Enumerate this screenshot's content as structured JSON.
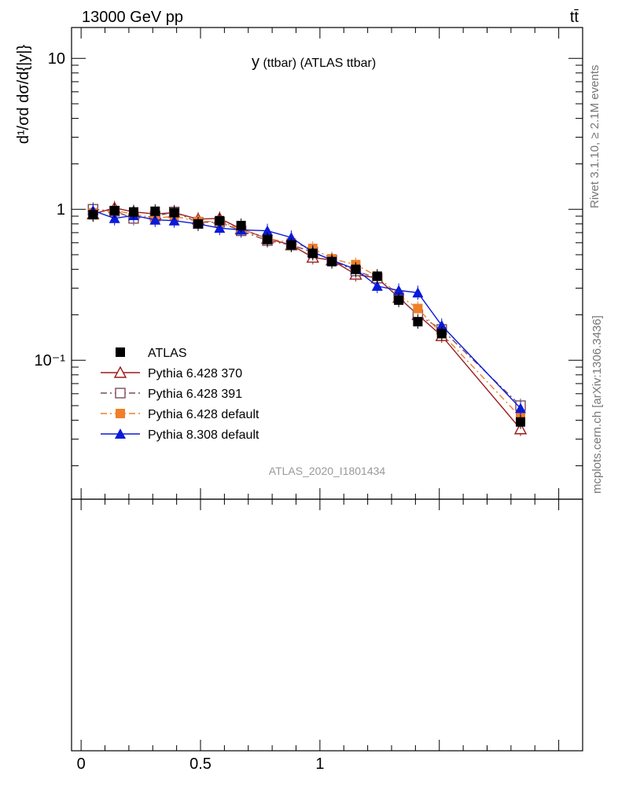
{
  "header": {
    "energy_label": "13000 GeV pp",
    "process_label": "tt̄",
    "rivet_label": "Rivet 3.1.10, ≥ 2.1M events",
    "mcplots_label": "mcplots.cern.ch [arXiv:1306.3436]",
    "analysis_id": "ATLAS_2020_I1801434"
  },
  "chart_data": {
    "type": "line",
    "title": "y(ttbar) (ATLAS ttbar)",
    "title_main": "y",
    "title_sub": "(ttbar) (ATLAS ttbar)",
    "ylabel": "",
    "xlabel": "",
    "y_scale": "log",
    "xlim": [
      -0.04,
      2.1
    ],
    "ylim": [
      0.012,
      16
    ],
    "y_ticks": [
      {
        "value": 10,
        "label": "10"
      },
      {
        "value": 1,
        "label": "1"
      },
      {
        "value": 0.1,
        "label": "10⁻¹"
      }
    ],
    "x_ticks": [
      {
        "value": 0,
        "label": "0"
      },
      {
        "value": 0.5,
        "label": "0.5"
      },
      {
        "value": 1,
        "label": "1"
      }
    ],
    "legend_position": "bottom-left",
    "grid": false,
    "series": [
      {
        "name": "ATLAS",
        "color": "#000000",
        "marker": "filled-square",
        "line": "none",
        "x": [
          0.05,
          0.14,
          0.22,
          0.31,
          0.39,
          0.49,
          0.58,
          0.67,
          0.78,
          0.88,
          0.97,
          1.05,
          1.15,
          1.24,
          1.33,
          1.41,
          1.51,
          1.84
        ],
        "y": [
          0.92,
          0.98,
          0.96,
          0.97,
          0.95,
          0.8,
          0.84,
          0.78,
          0.63,
          0.58,
          0.51,
          0.45,
          0.4,
          0.36,
          0.25,
          0.18,
          0.15,
          0.039
        ]
      },
      {
        "name": "Pythia 6.428 370",
        "color": "#9b1b1b",
        "marker": "open-triangle",
        "line": "solid",
        "x": [
          0.05,
          0.14,
          0.22,
          0.31,
          0.39,
          0.49,
          0.58,
          0.67,
          0.78,
          0.88,
          0.97,
          1.05,
          1.15,
          1.24,
          1.33,
          1.41,
          1.51,
          1.84
        ],
        "y": [
          0.93,
          1.02,
          0.96,
          0.93,
          0.95,
          0.86,
          0.87,
          0.74,
          0.64,
          0.58,
          0.48,
          0.46,
          0.37,
          0.35,
          0.26,
          0.2,
          0.145,
          0.035
        ]
      },
      {
        "name": "Pythia 6.428 391",
        "color": "#7a4a5e",
        "marker": "open-square",
        "line": "dash-dot",
        "x": [
          0.05,
          0.14,
          0.22,
          0.31,
          0.39,
          0.49,
          0.58,
          0.67,
          0.78,
          0.88,
          0.97,
          1.05,
          1.15,
          1.24,
          1.33,
          1.41,
          1.51,
          1.84
        ],
        "y": [
          1.0,
          0.97,
          0.87,
          0.9,
          0.96,
          0.82,
          0.82,
          0.72,
          0.62,
          0.58,
          0.52,
          0.46,
          0.39,
          0.35,
          0.26,
          0.2,
          0.16,
          0.05
        ]
      },
      {
        "name": "Pythia 6.428 default",
        "color": "#f07f2a",
        "marker": "filled-square",
        "line": "dash-dot",
        "x": [
          0.05,
          0.14,
          0.22,
          0.31,
          0.39,
          0.49,
          0.58,
          0.67,
          0.78,
          0.88,
          0.97,
          1.05,
          1.15,
          1.24,
          1.33,
          1.41,
          1.51,
          1.84
        ],
        "y": [
          0.95,
          0.98,
          0.93,
          0.87,
          0.9,
          0.83,
          0.83,
          0.74,
          0.64,
          0.6,
          0.55,
          0.47,
          0.43,
          0.36,
          0.27,
          0.22,
          0.15,
          0.042
        ]
      },
      {
        "name": "Pythia 8.308 default",
        "color": "#0a1ad8",
        "marker": "filled-triangle",
        "line": "solid",
        "x": [
          0.05,
          0.14,
          0.22,
          0.31,
          0.39,
          0.49,
          0.58,
          0.67,
          0.78,
          0.88,
          0.97,
          1.05,
          1.15,
          1.24,
          1.33,
          1.41,
          1.51,
          1.84
        ],
        "y": [
          0.98,
          0.87,
          0.91,
          0.85,
          0.84,
          0.8,
          0.75,
          0.73,
          0.72,
          0.65,
          0.52,
          0.46,
          0.4,
          0.31,
          0.29,
          0.28,
          0.17,
          0.048
        ]
      }
    ]
  }
}
